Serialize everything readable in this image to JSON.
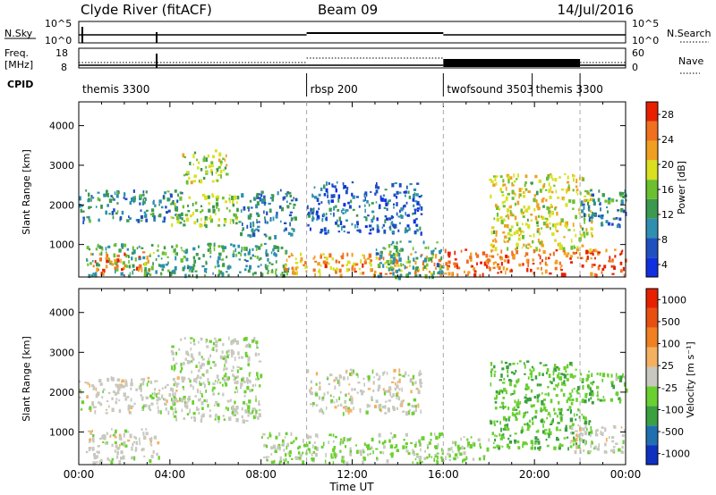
{
  "header": {
    "station": "Clyde River (fitACF)",
    "beam": "Beam 09",
    "date": "14/Jul/2016"
  },
  "status_panels": {
    "nsky_label": "N.Sky",
    "nsky_ticks": [
      "10^5",
      "10^0"
    ],
    "nsearch_label": "N.Search",
    "nsearch_ticks": [
      "10^5",
      "10^0"
    ],
    "freq_label": "Freq.",
    "freq_unit": "[MHz]",
    "freq_ticks": [
      "18",
      "8"
    ],
    "nave_label": "Nave",
    "nave_ticks": [
      "60",
      "0"
    ],
    "cpid_label": "CPID"
  },
  "cpid": [
    {
      "label": "themis 3300",
      "start_h": 0
    },
    {
      "label": "rbsp 200",
      "start_h": 10
    },
    {
      "label": "twofsound 3503",
      "start_h": 16
    },
    {
      "label": "themis 3300",
      "start_h": 19.9
    }
  ],
  "mode_boundaries_h": [
    10,
    16,
    22
  ],
  "power_colorbar": {
    "title": "Power [dB]",
    "ticks": [
      "28",
      "24",
      "20",
      "16",
      "12",
      "8",
      "4"
    ]
  },
  "velocity_colorbar": {
    "title": "Velocity [m s⁻¹]",
    "ticks": [
      "1000",
      "500",
      "100",
      "25",
      "-25",
      "-100",
      "-500",
      "-1000"
    ]
  },
  "chart_data": [
    {
      "type": "heatmap",
      "title": "",
      "xlabel": "Time UT",
      "ylabel": "Slant Range [km]",
      "x_ticks": [
        "00:00",
        "04:00",
        "08:00",
        "12:00",
        "16:00",
        "20:00",
        "00:00"
      ],
      "xlim_hours": [
        0,
        24
      ],
      "ylim": [
        180,
        4600
      ],
      "y_ticks": [
        1000,
        2000,
        3000,
        4000
      ],
      "value": "Power [dB]",
      "colorbar_range": [
        0,
        32
      ],
      "colors": [
        "#1030e0",
        "#2050c0",
        "#2f8fb0",
        "#3c9a50",
        "#6cc030",
        "#d8e020",
        "#f0a020",
        "#f07020",
        "#e82000"
      ],
      "echo_regions": [
        {
          "t0": 0.3,
          "t1": 9.2,
          "r0": 220,
          "r1": 1050,
          "power": 12
        },
        {
          "t0": 0.5,
          "t1": 2.0,
          "r0": 300,
          "r1": 800,
          "power": 26
        },
        {
          "t0": 2.5,
          "t1": 3.3,
          "r0": 350,
          "r1": 850,
          "power": 24
        },
        {
          "t0": 0.0,
          "t1": 4.5,
          "r0": 1600,
          "r1": 2400,
          "power": 10
        },
        {
          "t0": 4.0,
          "t1": 7.0,
          "r0": 1500,
          "r1": 2300,
          "power": 16
        },
        {
          "t0": 4.5,
          "t1": 6.5,
          "r0": 2600,
          "r1": 3400,
          "power": 18
        },
        {
          "t0": 7.0,
          "t1": 9.5,
          "r0": 1200,
          "r1": 2400,
          "power": 9
        },
        {
          "t0": 9.0,
          "t1": 16.0,
          "r0": 250,
          "r1": 800,
          "power": 24
        },
        {
          "t0": 10.0,
          "t1": 15.0,
          "r0": 1300,
          "r1": 2600,
          "power": 7
        },
        {
          "t0": 13.0,
          "t1": 16.0,
          "r0": 200,
          "r1": 1100,
          "power": 12
        },
        {
          "t0": 16.0,
          "t1": 24.0,
          "r0": 250,
          "r1": 900,
          "power": 27
        },
        {
          "t0": 18.0,
          "t1": 22.5,
          "r0": 900,
          "r1": 2800,
          "power": 19
        },
        {
          "t0": 22.0,
          "t1": 24.0,
          "r0": 1500,
          "r1": 2400,
          "power": 10
        }
      ]
    },
    {
      "type": "heatmap",
      "title": "",
      "xlabel": "Time UT",
      "ylabel": "Slant Range [km]",
      "x_ticks": [
        "00:00",
        "04:00",
        "08:00",
        "12:00",
        "16:00",
        "20:00",
        "00:00"
      ],
      "xlim_hours": [
        0,
        24
      ],
      "ylim": [
        180,
        4600
      ],
      "y_ticks": [
        1000,
        2000,
        3000,
        4000
      ],
      "value": "Velocity [m s⁻¹]",
      "colorbar_range": [
        -1000,
        1000
      ],
      "colors": [
        "#1030c0",
        "#2070b0",
        "#3aa040",
        "#6ad030",
        "#c8c8c0",
        "#f4b060",
        "#f08020",
        "#e85010",
        "#e82000"
      ],
      "echo_regions": [
        {
          "t0": 0.0,
          "t1": 4.5,
          "r0": 1500,
          "r1": 2400,
          "velocity": 0
        },
        {
          "t0": 0.3,
          "t1": 3.5,
          "r0": 250,
          "r1": 1100,
          "velocity": 0
        },
        {
          "t0": 4.0,
          "t1": 8.0,
          "r0": 1300,
          "r1": 3400,
          "velocity": -60
        },
        {
          "t0": 8.0,
          "t1": 16.0,
          "r0": 250,
          "r1": 1000,
          "velocity": -150
        },
        {
          "t0": 10.0,
          "t1": 15.0,
          "r0": 1500,
          "r1": 2600,
          "velocity": 0
        },
        {
          "t0": 16.0,
          "t1": 18.0,
          "r0": 300,
          "r1": 900,
          "velocity": -120
        },
        {
          "t0": 18.0,
          "t1": 22.5,
          "r0": 600,
          "r1": 2800,
          "velocity": -300
        },
        {
          "t0": 21.5,
          "t1": 24.0,
          "r0": 500,
          "r1": 1200,
          "velocity": 0
        },
        {
          "t0": 22.0,
          "t1": 24.0,
          "r0": 1800,
          "r1": 2500,
          "velocity": -250
        }
      ]
    }
  ]
}
